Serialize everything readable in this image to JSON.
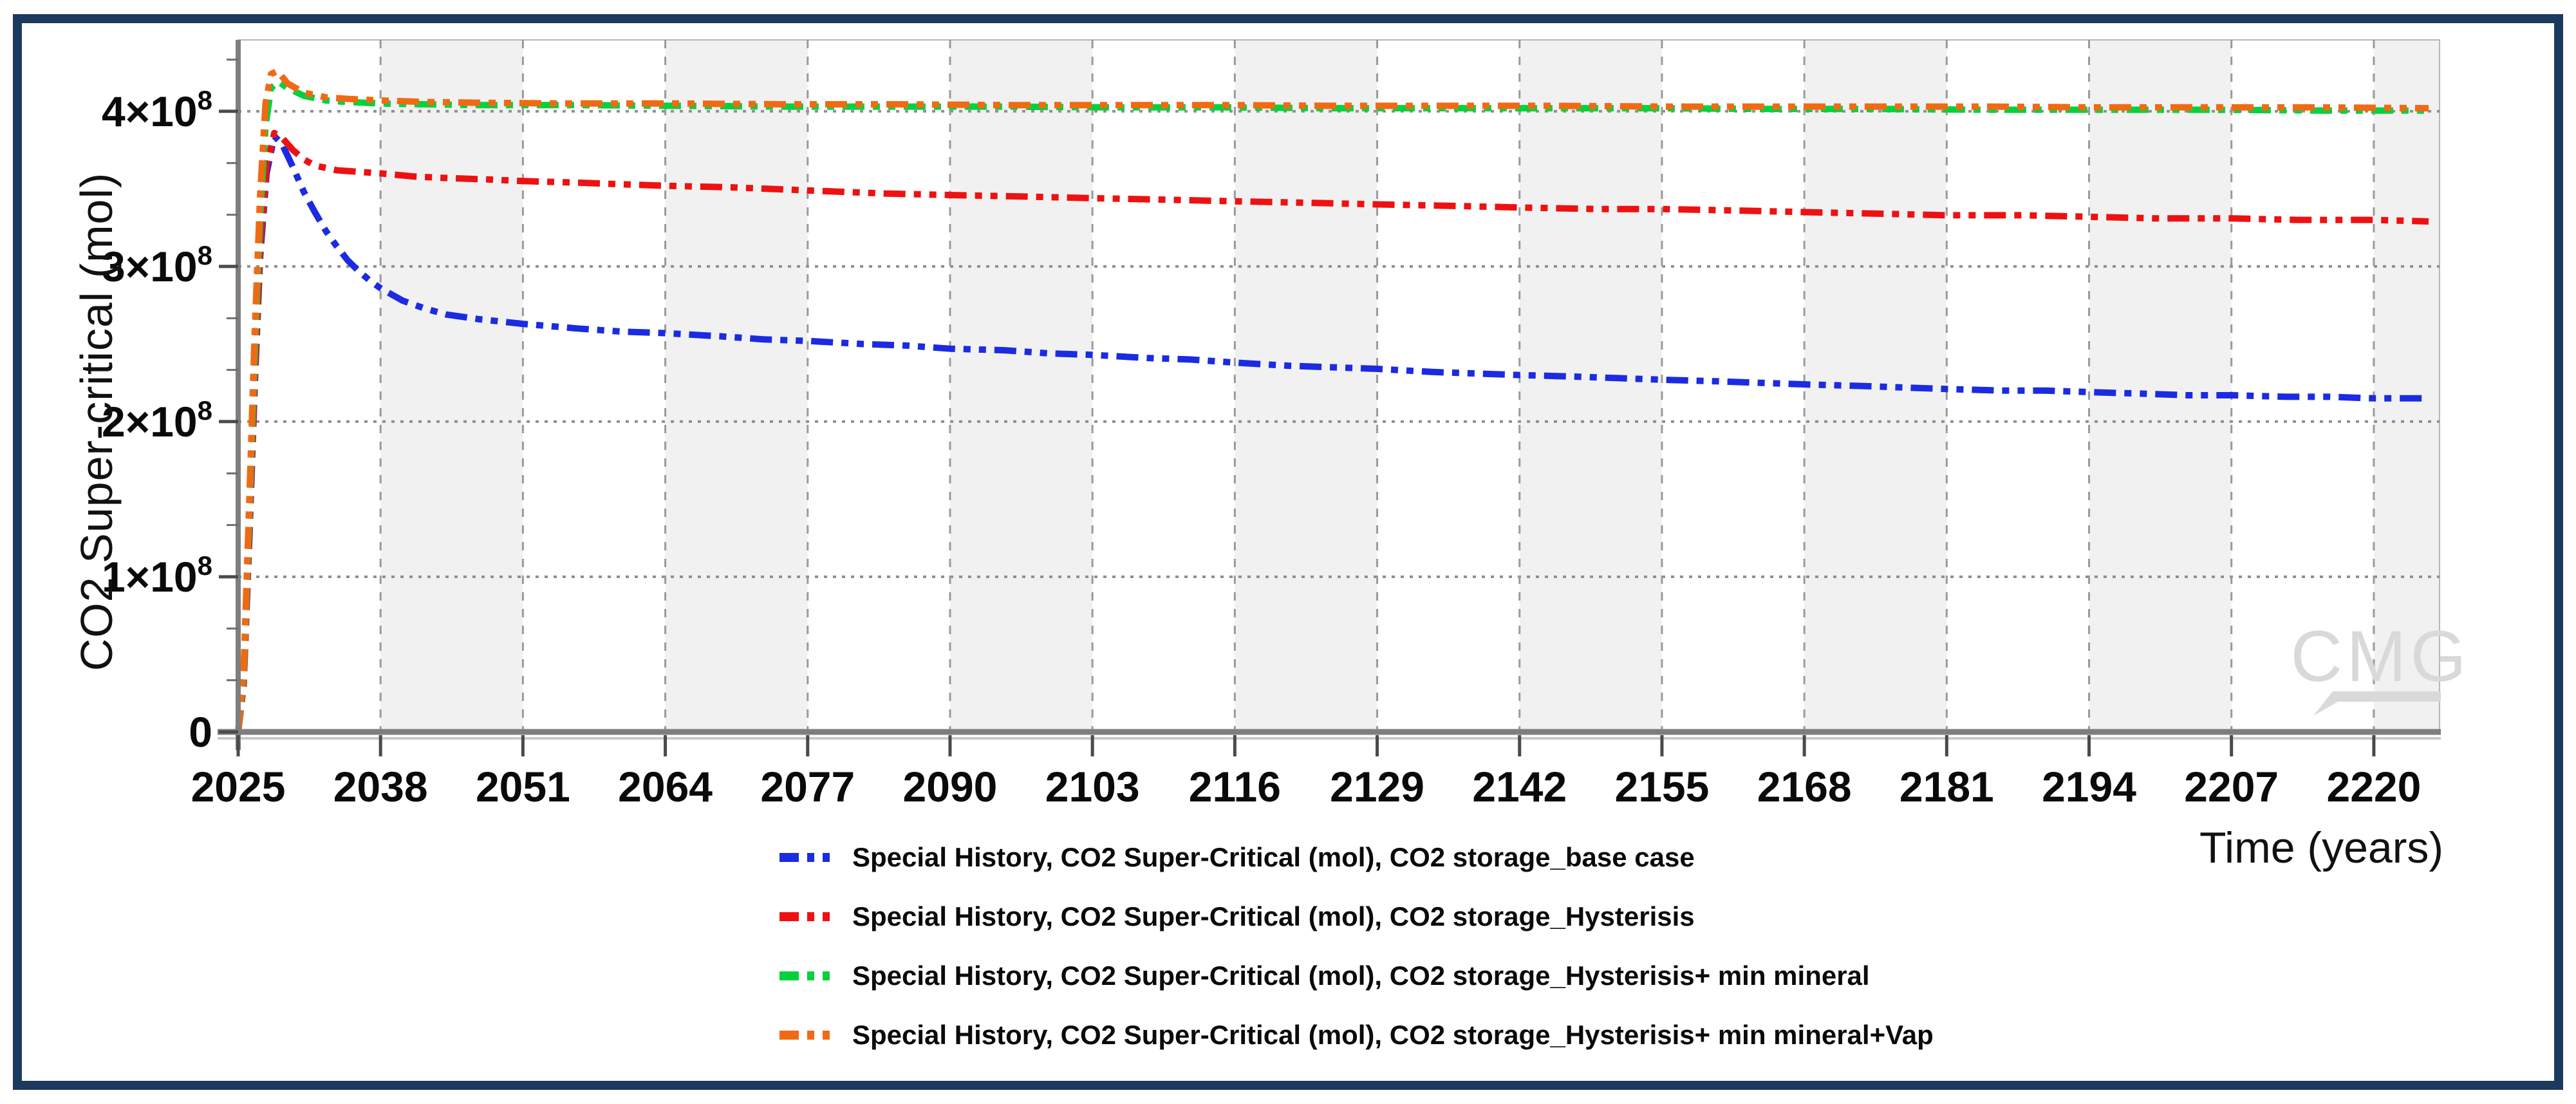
{
  "frame": {
    "border_color": "#1c3a5f"
  },
  "chart_data": {
    "type": "line",
    "title": "",
    "xlabel": "Time (years)",
    "ylabel": "CO2 Super-critical (mol)",
    "x_range": [
      2025,
      2226
    ],
    "y_range_mol": [
      0,
      446000000
    ],
    "value_scale_mol": 100000000,
    "grid": true,
    "legend_position": "bottom-left",
    "watermark": "CMG",
    "watermark_color": "#d9d9d9",
    "band_color": "#f1f1f1",
    "x_ticks": [
      2025,
      2038,
      2051,
      2064,
      2077,
      2090,
      2103,
      2116,
      2129,
      2142,
      2155,
      2168,
      2181,
      2194,
      2207,
      2220
    ],
    "y_ticks": [
      {
        "v": 0,
        "base": "0",
        "exp": ""
      },
      {
        "v": 1,
        "base": "1×10",
        "exp": "8"
      },
      {
        "v": 2,
        "base": "2×10",
        "exp": "8"
      },
      {
        "v": 3,
        "base": "3×10",
        "exp": "8"
      },
      {
        "v": 4,
        "base": "4×10",
        "exp": "8"
      }
    ],
    "y_minor_tick_step": 0.3333,
    "series": [
      {
        "name": "base-case",
        "label": "Special History, CO2 Super-Critical (mol), CO2 storage_base case",
        "color": "#1b2be2",
        "points": [
          [
            2025,
            0
          ],
          [
            2025.5,
            0.3
          ],
          [
            2026,
            1.2
          ],
          [
            2026.5,
            2.2
          ],
          [
            2027,
            3.05
          ],
          [
            2027.6,
            3.6
          ],
          [
            2028.3,
            3.84
          ],
          [
            2029,
            3.79
          ],
          [
            2030,
            3.64
          ],
          [
            2031,
            3.48
          ],
          [
            2032,
            3.35
          ],
          [
            2033,
            3.23
          ],
          [
            2034,
            3.13
          ],
          [
            2035,
            3.04
          ],
          [
            2036,
            2.97
          ],
          [
            2037,
            2.91
          ],
          [
            2038,
            2.86
          ],
          [
            2040,
            2.78
          ],
          [
            2042,
            2.73
          ],
          [
            2044,
            2.69
          ],
          [
            2047,
            2.66
          ],
          [
            2051,
            2.63
          ],
          [
            2056,
            2.6
          ],
          [
            2060,
            2.58
          ],
          [
            2064,
            2.57
          ],
          [
            2069,
            2.55
          ],
          [
            2073,
            2.53
          ],
          [
            2077,
            2.52
          ],
          [
            2082,
            2.5
          ],
          [
            2086,
            2.49
          ],
          [
            2090,
            2.47
          ],
          [
            2095,
            2.46
          ],
          [
            2099,
            2.44
          ],
          [
            2103,
            2.43
          ],
          [
            2108,
            2.41
          ],
          [
            2112,
            2.4
          ],
          [
            2116,
            2.38
          ],
          [
            2121,
            2.36
          ],
          [
            2125,
            2.35
          ],
          [
            2129,
            2.34
          ],
          [
            2134,
            2.32
          ],
          [
            2138,
            2.31
          ],
          [
            2142,
            2.3
          ],
          [
            2147,
            2.29
          ],
          [
            2151,
            2.28
          ],
          [
            2155,
            2.27
          ],
          [
            2160,
            2.26
          ],
          [
            2164,
            2.25
          ],
          [
            2168,
            2.24
          ],
          [
            2173,
            2.23
          ],
          [
            2177,
            2.22
          ],
          [
            2181,
            2.21
          ],
          [
            2186,
            2.2
          ],
          [
            2190,
            2.2
          ],
          [
            2194,
            2.19
          ],
          [
            2199,
            2.18
          ],
          [
            2203,
            2.17
          ],
          [
            2207,
            2.17
          ],
          [
            2212,
            2.16
          ],
          [
            2216,
            2.16
          ],
          [
            2220,
            2.15
          ],
          [
            2225,
            2.15
          ]
        ]
      },
      {
        "name": "hysterisis",
        "label": "Special History, CO2 Super-Critical (mol), CO2 storage_Hysterisis",
        "color": "#ee1111",
        "points": [
          [
            2025,
            0
          ],
          [
            2025.5,
            0.3
          ],
          [
            2026,
            1.25
          ],
          [
            2026.5,
            2.25
          ],
          [
            2027,
            3.1
          ],
          [
            2027.6,
            3.65
          ],
          [
            2028.3,
            3.86
          ],
          [
            2029,
            3.83
          ],
          [
            2030,
            3.75
          ],
          [
            2031,
            3.69
          ],
          [
            2032,
            3.65
          ],
          [
            2034,
            3.62
          ],
          [
            2036,
            3.61
          ],
          [
            2038,
            3.6
          ],
          [
            2041,
            3.58
          ],
          [
            2044,
            3.57
          ],
          [
            2048,
            3.56
          ],
          [
            2051,
            3.55
          ],
          [
            2056,
            3.54
          ],
          [
            2060,
            3.53
          ],
          [
            2064,
            3.52
          ],
          [
            2070,
            3.51
          ],
          [
            2077,
            3.49
          ],
          [
            2084,
            3.47
          ],
          [
            2090,
            3.46
          ],
          [
            2097,
            3.45
          ],
          [
            2103,
            3.44
          ],
          [
            2110,
            3.43
          ],
          [
            2116,
            3.42
          ],
          [
            2123,
            3.41
          ],
          [
            2129,
            3.4
          ],
          [
            2136,
            3.39
          ],
          [
            2142,
            3.38
          ],
          [
            2149,
            3.37
          ],
          [
            2155,
            3.37
          ],
          [
            2162,
            3.36
          ],
          [
            2168,
            3.35
          ],
          [
            2175,
            3.34
          ],
          [
            2181,
            3.33
          ],
          [
            2188,
            3.33
          ],
          [
            2194,
            3.32
          ],
          [
            2200,
            3.31
          ],
          [
            2207,
            3.31
          ],
          [
            2213,
            3.3
          ],
          [
            2220,
            3.3
          ],
          [
            2225,
            3.29
          ]
        ]
      },
      {
        "name": "hysterisis-min-mineral",
        "label": "Special History, CO2 Super-Critical (mol), CO2 storage_Hysterisis+ min mineral",
        "color": "#00d23e",
        "points": [
          [
            2025,
            0
          ],
          [
            2025.5,
            0.35
          ],
          [
            2026,
            1.35
          ],
          [
            2026.5,
            2.4
          ],
          [
            2027,
            3.3
          ],
          [
            2027.5,
            3.9
          ],
          [
            2028,
            4.15
          ],
          [
            2028.7,
            4.19
          ],
          [
            2029.5,
            4.15
          ],
          [
            2031,
            4.1
          ],
          [
            2033,
            4.07
          ],
          [
            2035,
            4.06
          ],
          [
            2038,
            4.05
          ],
          [
            2042,
            4.045
          ],
          [
            2047,
            4.04
          ],
          [
            2055,
            4.04
          ],
          [
            2065,
            4.035
          ],
          [
            2075,
            4.03
          ],
          [
            2085,
            4.03
          ],
          [
            2095,
            4.03
          ],
          [
            2105,
            4.025
          ],
          [
            2115,
            4.025
          ],
          [
            2125,
            4.02
          ],
          [
            2135,
            4.02
          ],
          [
            2145,
            4.02
          ],
          [
            2155,
            4.02
          ],
          [
            2165,
            4.015
          ],
          [
            2175,
            4.015
          ],
          [
            2185,
            4.01
          ],
          [
            2195,
            4.01
          ],
          [
            2205,
            4.01
          ],
          [
            2215,
            4.005
          ],
          [
            2225,
            4.005
          ]
        ]
      },
      {
        "name": "hysterisis-min-mineral-vap",
        "label": "Special History, CO2 Super-Critical (mol), CO2 storage_Hysterisis+ min mineral+Vap",
        "color": "#f06a14",
        "points": [
          [
            2025,
            0
          ],
          [
            2025.5,
            0.4
          ],
          [
            2026,
            1.45
          ],
          [
            2026.5,
            2.55
          ],
          [
            2027,
            3.45
          ],
          [
            2027.5,
            4.05
          ],
          [
            2028,
            4.24
          ],
          [
            2028.6,
            4.26
          ],
          [
            2029.5,
            4.18
          ],
          [
            2031,
            4.12
          ],
          [
            2033,
            4.09
          ],
          [
            2035,
            4.08
          ],
          [
            2038,
            4.07
          ],
          [
            2042,
            4.06
          ],
          [
            2047,
            4.055
          ],
          [
            2055,
            4.05
          ],
          [
            2065,
            4.05
          ],
          [
            2075,
            4.045
          ],
          [
            2085,
            4.045
          ],
          [
            2095,
            4.04
          ],
          [
            2105,
            4.04
          ],
          [
            2115,
            4.04
          ],
          [
            2125,
            4.035
          ],
          [
            2135,
            4.035
          ],
          [
            2145,
            4.035
          ],
          [
            2155,
            4.03
          ],
          [
            2165,
            4.03
          ],
          [
            2175,
            4.03
          ],
          [
            2185,
            4.03
          ],
          [
            2195,
            4.025
          ],
          [
            2205,
            4.025
          ],
          [
            2215,
            4.025
          ],
          [
            2225,
            4.02
          ]
        ]
      }
    ]
  }
}
